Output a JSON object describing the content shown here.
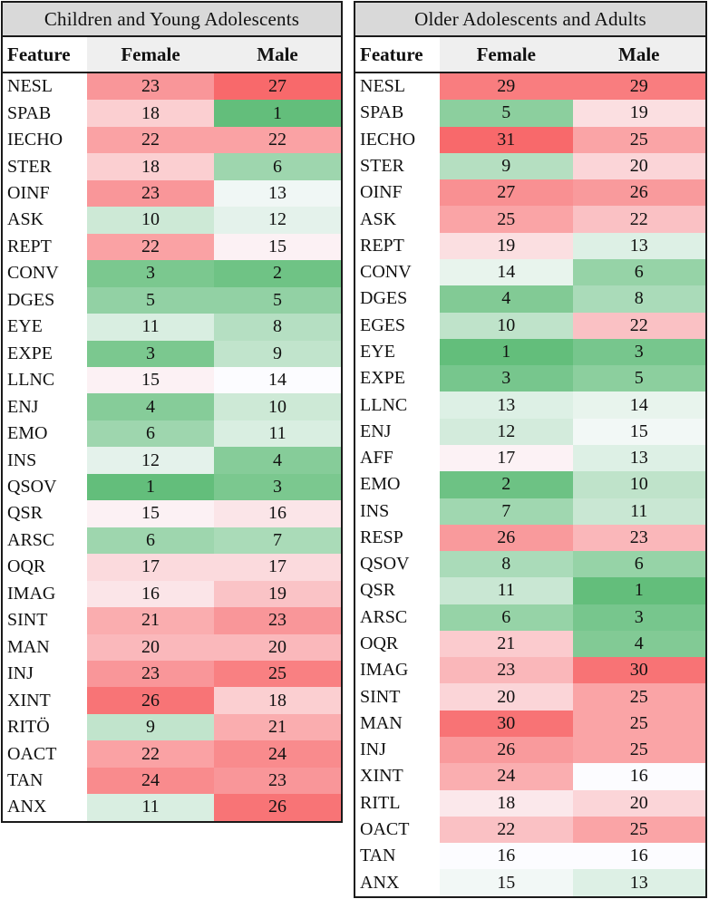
{
  "colors": {
    "scale_low_green": "#63be7b",
    "scale_mid_white": "#fcfcff",
    "scale_high_red": "#f8696b",
    "title_bar_bg": "#d9d9d9",
    "header_cell_bg": "#efefef",
    "border": "#1a1a1a"
  },
  "chart_data": [
    {
      "type": "heatmap",
      "title": "Children and Young Adolescents",
      "columns": [
        "Feature",
        "Female",
        "Male"
      ],
      "scale_domain": {
        "min": 1,
        "mid": 14,
        "max": 27
      },
      "legend": "none",
      "rows": [
        [
          "NESL",
          23,
          27
        ],
        [
          "SPAB",
          18,
          1
        ],
        [
          "IECHO",
          22,
          22
        ],
        [
          "STER",
          18,
          6
        ],
        [
          "OINF",
          23,
          13
        ],
        [
          "ASK",
          10,
          12
        ],
        [
          "REPT",
          22,
          15
        ],
        [
          "CONV",
          3,
          2
        ],
        [
          "DGES",
          5,
          5
        ],
        [
          "EYE",
          11,
          8
        ],
        [
          "EXPE",
          3,
          9
        ],
        [
          "LLNC",
          15,
          14
        ],
        [
          "ENJ",
          4,
          10
        ],
        [
          "EMO",
          6,
          11
        ],
        [
          "INS",
          12,
          4
        ],
        [
          "QSOV",
          1,
          3
        ],
        [
          "QSR",
          15,
          16
        ],
        [
          "ARSC",
          6,
          7
        ],
        [
          "OQR",
          17,
          17
        ],
        [
          "IMAG",
          16,
          19
        ],
        [
          "SINT",
          21,
          23
        ],
        [
          "MAN",
          20,
          20
        ],
        [
          "INJ",
          23,
          25
        ],
        [
          "XINT",
          26,
          18
        ],
        [
          "RITÖ",
          9,
          21
        ],
        [
          "OACT",
          22,
          24
        ],
        [
          "TAN",
          24,
          23
        ],
        [
          "ANX",
          11,
          26
        ]
      ]
    },
    {
      "type": "heatmap",
      "title": "Older Adolescents and Adults",
      "columns": [
        "Feature",
        "Female",
        "Male"
      ],
      "scale_domain": {
        "min": 1,
        "mid": 16,
        "max": 31
      },
      "legend": "none",
      "rows": [
        [
          "NESL",
          29,
          29
        ],
        [
          "SPAB",
          5,
          19
        ],
        [
          "IECHO",
          31,
          25
        ],
        [
          "STER",
          9,
          20
        ],
        [
          "OINF",
          27,
          26
        ],
        [
          "ASK",
          25,
          22
        ],
        [
          "REPT",
          19,
          13
        ],
        [
          "CONV",
          14,
          6
        ],
        [
          "DGES",
          4,
          8
        ],
        [
          "EGES",
          10,
          22
        ],
        [
          "EYE",
          1,
          3
        ],
        [
          "EXPE",
          3,
          5
        ],
        [
          "LLNC",
          13,
          14
        ],
        [
          "ENJ",
          12,
          15
        ],
        [
          "AFF",
          17,
          13
        ],
        [
          "EMO",
          2,
          10
        ],
        [
          "INS",
          7,
          11
        ],
        [
          "RESP",
          26,
          23
        ],
        [
          "QSOV",
          8,
          6
        ],
        [
          "QSR",
          11,
          1
        ],
        [
          "ARSC",
          6,
          3
        ],
        [
          "OQR",
          21,
          4
        ],
        [
          "IMAG",
          23,
          30
        ],
        [
          "SINT",
          20,
          25
        ],
        [
          "MAN",
          30,
          25
        ],
        [
          "INJ",
          26,
          25
        ],
        [
          "XINT",
          24,
          16
        ],
        [
          "RITL",
          18,
          20
        ],
        [
          "OACT",
          22,
          25
        ],
        [
          "TAN",
          16,
          16
        ],
        [
          "ANX",
          15,
          13
        ]
      ]
    }
  ]
}
